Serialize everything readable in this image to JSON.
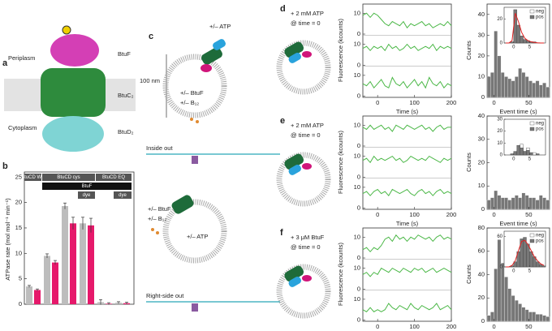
{
  "panel_labels": [
    "a",
    "b",
    "c",
    "d",
    "e",
    "f"
  ],
  "structure": {
    "labels": [
      "Periplasm",
      "BtuF",
      "BtuC₂",
      "Cytoplasm",
      "BtuD₂"
    ]
  },
  "atpase": {
    "type": "bar",
    "ylabel": "ATPase rate (mol mol⁻¹ min⁻¹)",
    "ylim": [
      0,
      26
    ],
    "yticks": [
      0,
      5,
      10,
      15,
      20,
      25
    ],
    "groups": [
      "BtuCD WT",
      "BtuCD cys",
      "BtuCD EQ"
    ],
    "btuf": "BtuF",
    "dye": [
      "dye",
      "dye"
    ],
    "categories": [
      null,
      null,
      null,
      null,
      null,
      null
    ],
    "series": [
      {
        "color": "#bdbdbd",
        "values": [
          3.5,
          9.5,
          19.3,
          15.9,
          0.4,
          0.3
        ],
        "errors": [
          0.2,
          0.4,
          0.6,
          1.2,
          0.5,
          0.2
        ]
      },
      {
        "color": "#e6196b",
        "values": [
          2.8,
          8.2,
          15.9,
          15.5,
          0.1,
          0.2
        ],
        "errors": [
          0.2,
          0.4,
          1.2,
          1.4,
          0.2,
          0.2
        ]
      }
    ]
  },
  "vesicles": {
    "inside_out": [
      "+/– ATP",
      "100 nm",
      "+/– BtuF",
      "+/– B₁₂",
      "Inside out"
    ],
    "right_side_out": [
      "+/– BtuF",
      "+/– B₁₂",
      "+/– ATP",
      "Right-side out"
    ]
  },
  "rows": [
    {
      "condition": [
        "+ 2 mM ATP",
        "@ time = 0"
      ],
      "traces": {
        "ylabel": "Fluorescence (kcounts)",
        "xlabel": "Time (s)",
        "xlim": [
          -40,
          200
        ],
        "xticks": [
          0,
          100,
          200
        ],
        "ylim": [
          0,
          14
        ],
        "yticks": [
          0,
          10
        ],
        "x": [
          -40,
          -30,
          -20,
          -10,
          0,
          10,
          20,
          30,
          40,
          50,
          60,
          70,
          80,
          90,
          100,
          110,
          120,
          130,
          140,
          150,
          160,
          170,
          180,
          190,
          200
        ],
        "series": [
          {
            "color": "#4cb848",
            "values": [
              9,
              10,
              8,
              10,
              9,
              7,
              5,
              4,
              6,
              5,
              4,
              6,
              3,
              5,
              4,
              5,
              6,
              4,
              5,
              3,
              4,
              5,
              4,
              6,
              4
            ]
          },
          {
            "color": "#4cb848",
            "values": [
              8,
              9,
              7,
              9,
              8,
              9,
              7,
              10,
              8,
              9,
              7,
              8,
              10,
              8,
              9,
              7,
              8,
              9,
              8,
              10,
              7,
              9,
              8,
              9,
              8
            ]
          },
          {
            "color": "#4cb848",
            "values": [
              6,
              5,
              7,
              4,
              6,
              8,
              5,
              4,
              9,
              6,
              5,
              7,
              4,
              6,
              8,
              5,
              7,
              4,
              9,
              6,
              5,
              7,
              4,
              6,
              5
            ]
          }
        ]
      },
      "histogram": {
        "ylabel": "Counts",
        "xlabel": "Event time (s)",
        "color": "#777777",
        "xlim": [
          -10,
          80
        ],
        "xticks": [
          0,
          50
        ],
        "ylim": [
          0,
          45
        ],
        "yticks": [
          0,
          10,
          20,
          30,
          40
        ],
        "bins": [
          -10,
          -5,
          0,
          5,
          10,
          15,
          20,
          25,
          30,
          35,
          40,
          45,
          50,
          55,
          60,
          65,
          70,
          75,
          80
        ],
        "counts": [
          10,
          12,
          32,
          20,
          12,
          10,
          9,
          8,
          10,
          14,
          12,
          10,
          8,
          7,
          8,
          6,
          7,
          5
        ],
        "inset": {
          "xlim": [
            -3,
            10
          ],
          "xticks": [
            0,
            5
          ],
          "ylim": [
            0,
            30
          ],
          "yticks": [
            0,
            20
          ],
          "bins": [
            -3,
            -2,
            -1,
            0,
            1,
            2,
            3,
            4,
            5,
            6,
            7,
            8,
            9,
            10
          ],
          "series": [
            {
              "name": "neg",
              "color": "#ffffff",
              "values": [
                0,
                0,
                0,
                0,
                1,
                0,
                0,
                0,
                0,
                0,
                0,
                0,
                0
              ]
            },
            {
              "name": "pos",
              "color": "#777777",
              "values": [
                0,
                0,
                1,
                28,
                15,
                6,
                3,
                2,
                1,
                1,
                0,
                0,
                0
              ]
            }
          ],
          "fit": {
            "color": "#e02020",
            "values": [
              0,
              0,
              2,
              25,
              18,
              9,
              4,
              2,
              1,
              0.5,
              0.2,
              0,
              0
            ]
          }
        }
      }
    },
    {
      "condition": [
        "+ 2 mM ATP",
        "@ time = 0"
      ],
      "traces": {
        "ylabel": "Fluorescence (kcounts)",
        "xlabel": "Time (s)",
        "xlim": [
          -40,
          200
        ],
        "xticks": [
          0,
          100,
          200
        ],
        "ylim": [
          0,
          14
        ],
        "yticks": [
          0,
          10
        ],
        "x": [
          -40,
          -30,
          -20,
          -10,
          0,
          10,
          20,
          30,
          40,
          50,
          60,
          70,
          80,
          90,
          100,
          110,
          120,
          130,
          140,
          150,
          160,
          170,
          180,
          190,
          200
        ],
        "series": [
          {
            "color": "#4cb848",
            "values": [
              9,
              8,
              10,
              8,
              9,
              10,
              8,
              9,
              7,
              10,
              9,
              8,
              10,
              9,
              8,
              9,
              10,
              8,
              9,
              7,
              9,
              10,
              8,
              9,
              9
            ]
          },
          {
            "color": "#4cb848",
            "values": [
              8,
              9,
              7,
              10,
              8,
              9,
              8,
              9,
              10,
              8,
              9,
              7,
              8,
              10,
              9,
              8,
              9,
              8,
              10,
              9,
              8,
              7,
              9,
              8,
              9
            ]
          },
          {
            "color": "#4cb848",
            "values": [
              7,
              8,
              6,
              8,
              9,
              7,
              8,
              6,
              9,
              8,
              7,
              8,
              9,
              7,
              6,
              8,
              9,
              7,
              8,
              6,
              8,
              9,
              7,
              8,
              7
            ]
          }
        ]
      },
      "histogram": {
        "ylabel": "Counts",
        "xlabel": "Event time (s)",
        "color": "#777777",
        "xlim": [
          -10,
          80
        ],
        "xticks": [
          0,
          50
        ],
        "ylim": [
          0,
          40
        ],
        "yticks": [
          0,
          10,
          20,
          30,
          40
        ],
        "bins": [
          -10,
          -5,
          0,
          5,
          10,
          15,
          20,
          25,
          30,
          35,
          40,
          45,
          50,
          55,
          60,
          65,
          70,
          75,
          80
        ],
        "counts": [
          4,
          5,
          8,
          6,
          5,
          5,
          4,
          5,
          6,
          5,
          7,
          6,
          5,
          5,
          4,
          6,
          5,
          4
        ],
        "inset": {
          "xlim": [
            -3,
            10
          ],
          "xticks": [
            0,
            5
          ],
          "ylim": [
            0,
            30
          ],
          "yticks": [
            0,
            10,
            20,
            30
          ],
          "bins": [
            -3,
            -2,
            -1,
            0,
            1,
            2,
            3,
            4,
            5,
            6,
            7,
            8,
            9,
            10
          ],
          "series": [
            {
              "name": "neg",
              "color": "#ffffff",
              "values": [
                0,
                0,
                0,
                2,
                4,
                9,
                3,
                6,
                1,
                2,
                0,
                0,
                0
              ]
            },
            {
              "name": "pos",
              "color": "#777777",
              "values": [
                0,
                0,
                1,
                3,
                8,
                6,
                3,
                4,
                2,
                0,
                1,
                0,
                0
              ]
            }
          ]
        }
      }
    },
    {
      "condition": [
        "+ 3 μM BtuF",
        "@ time = 0"
      ],
      "traces": {
        "ylabel": "Fluorescence (kcounts)",
        "xlabel": "Time (s)",
        "xlim": [
          -40,
          200
        ],
        "xticks": [
          0,
          100,
          200
        ],
        "ylim": [
          0,
          14
        ],
        "yticks": [
          0,
          10
        ],
        "x": [
          -40,
          -30,
          -20,
          -10,
          0,
          10,
          20,
          30,
          40,
          50,
          60,
          70,
          80,
          90,
          100,
          110,
          120,
          130,
          140,
          150,
          160,
          170,
          180,
          190,
          200
        ],
        "series": [
          {
            "color": "#4cb848",
            "values": [
              4,
              5,
              3,
              5,
              4,
              6,
              9,
              10,
              8,
              11,
              9,
              10,
              8,
              10,
              9,
              11,
              10,
              9,
              10,
              8,
              10,
              11,
              9,
              10,
              9
            ]
          },
          {
            "color": "#4cb848",
            "values": [
              7,
              8,
              6,
              8,
              7,
              10,
              9,
              8,
              10,
              9,
              8,
              10,
              9,
              8,
              10,
              9,
              10,
              8,
              9,
              10,
              8,
              9,
              10,
              9,
              8
            ]
          },
          {
            "color": "#4cb848",
            "values": [
              5,
              4,
              6,
              4,
              5,
              4,
              5,
              8,
              6,
              5,
              7,
              6,
              5,
              8,
              6,
              5,
              7,
              6,
              5,
              6,
              8,
              5,
              6,
              7,
              5
            ]
          }
        ]
      },
      "histogram": {
        "ylabel": "Counts",
        "xlabel": "Event time (s)",
        "color": "#777777",
        "xlim": [
          -10,
          80
        ],
        "xticks": [
          0,
          50
        ],
        "ylim": [
          0,
          80
        ],
        "yticks": [
          0,
          20,
          40,
          60,
          80
        ],
        "bins": [
          -10,
          -5,
          0,
          5,
          10,
          15,
          20,
          25,
          30,
          35,
          40,
          45,
          50,
          55,
          60,
          65,
          70,
          75,
          80
        ],
        "counts": [
          5,
          8,
          45,
          70,
          50,
          38,
          28,
          22,
          18,
          15,
          12,
          10,
          8,
          8,
          6,
          6,
          5,
          4
        ],
        "inset": {
          "xlim": [
            -3,
            10
          ],
          "xticks": [
            0,
            5
          ],
          "ylim": [
            0,
            70
          ],
          "yticks": [
            0,
            60
          ],
          "bins": [
            -3,
            -2,
            -1,
            0,
            1,
            2,
            3,
            4,
            5,
            6,
            7,
            8,
            9,
            10
          ],
          "series": [
            {
              "name": "neg",
              "color": "#ffffff",
              "values": [
                0,
                0,
                0,
                0,
                0,
                0,
                0,
                0,
                0,
                0,
                0,
                0,
                0
              ]
            },
            {
              "name": "pos",
              "color": "#777777",
              "values": [
                0,
                0,
                2,
                10,
                30,
                55,
                58,
                45,
                30,
                20,
                10,
                5,
                2
              ]
            }
          ],
          "fit": {
            "color": "#e02020",
            "values": [
              0,
              0,
              3,
              12,
              32,
              50,
              52,
              44,
              32,
              20,
              12,
              6,
              3
            ]
          }
        }
      }
    }
  ]
}
